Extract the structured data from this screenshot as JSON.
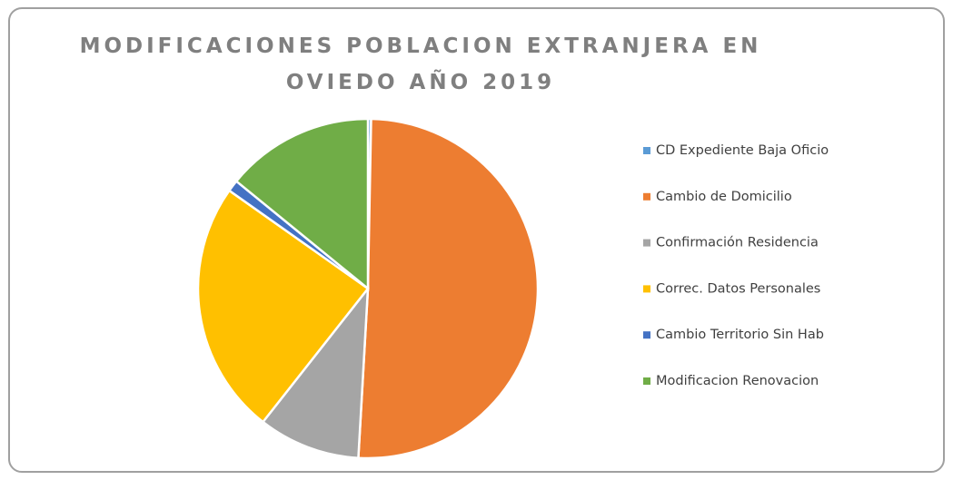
{
  "chart_data": {
    "type": "pie",
    "title": [
      "MODIFICACIONES POBLACION EXTRANJERA EN",
      "OVIEDO AÑO 2019"
    ],
    "categories": [
      "CD Expediente Baja Oficio",
      "Cambio de Domicilio",
      "Confirmación Residencia",
      "Correc. Datos Personales",
      "Cambio Territorio Sin Hab",
      "Modificacion Renovacion"
    ],
    "values": [
      0.3,
      50.6,
      9.7,
      24.2,
      1.1,
      14.1
    ],
    "colors": [
      "#5b9bd5",
      "#ed7d31",
      "#a5a5a5",
      "#ffc000",
      "#4472c4",
      "#70ad47"
    ],
    "legend": "right"
  }
}
